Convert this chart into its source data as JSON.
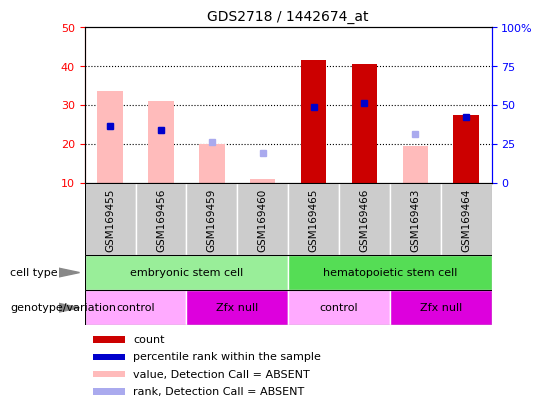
{
  "title": "GDS2718 / 1442674_at",
  "samples": [
    "GSM169455",
    "GSM169456",
    "GSM169459",
    "GSM169460",
    "GSM169465",
    "GSM169466",
    "GSM169463",
    "GSM169464"
  ],
  "count_values": [
    null,
    null,
    null,
    null,
    41.5,
    40.5,
    null,
    27.5
  ],
  "percentile_rank": [
    24.5,
    23.5,
    null,
    null,
    29.5,
    30.5,
    null,
    27.0
  ],
  "value_absent": [
    33.5,
    31.0,
    20.0,
    11.0,
    null,
    null,
    19.5,
    null
  ],
  "rank_absent": [
    24.5,
    23.5,
    20.5,
    17.5,
    null,
    null,
    22.5,
    null
  ],
  "ylim": [
    10,
    50
  ],
  "yticks": [
    10,
    20,
    30,
    40,
    50
  ],
  "y2ticks": [
    0,
    25,
    50,
    75,
    100
  ],
  "y2labels": [
    "0",
    "25",
    "50",
    "75",
    "100%"
  ],
  "cell_type_groups": [
    {
      "label": "embryonic stem cell",
      "start": 0,
      "end": 4,
      "color": "#99ee99"
    },
    {
      "label": "hematopoietic stem cell",
      "start": 4,
      "end": 8,
      "color": "#55dd55"
    }
  ],
  "genotype_groups": [
    {
      "label": "control",
      "start": 0,
      "end": 2,
      "color": "#ffaaff"
    },
    {
      "label": "Zfx null",
      "start": 2,
      "end": 4,
      "color": "#dd00dd"
    },
    {
      "label": "control",
      "start": 4,
      "end": 6,
      "color": "#ffaaff"
    },
    {
      "label": "Zfx null",
      "start": 6,
      "end": 8,
      "color": "#dd00dd"
    }
  ],
  "count_color": "#cc0000",
  "percentile_color": "#0000cc",
  "value_absent_color": "#ffbbbb",
  "rank_absent_color": "#aaaaee",
  "ybase": 10,
  "bar_width": 0.5,
  "legend_items": [
    {
      "label": "count",
      "color": "#cc0000"
    },
    {
      "label": "percentile rank within the sample",
      "color": "#0000cc"
    },
    {
      "label": "value, Detection Call = ABSENT",
      "color": "#ffbbbb"
    },
    {
      "label": "rank, Detection Call = ABSENT",
      "color": "#aaaaee"
    }
  ],
  "cell_type_label": "cell type",
  "genotype_label": "genotype/variation",
  "sample_bg_color": "#cccccc",
  "border_color": "#888888"
}
